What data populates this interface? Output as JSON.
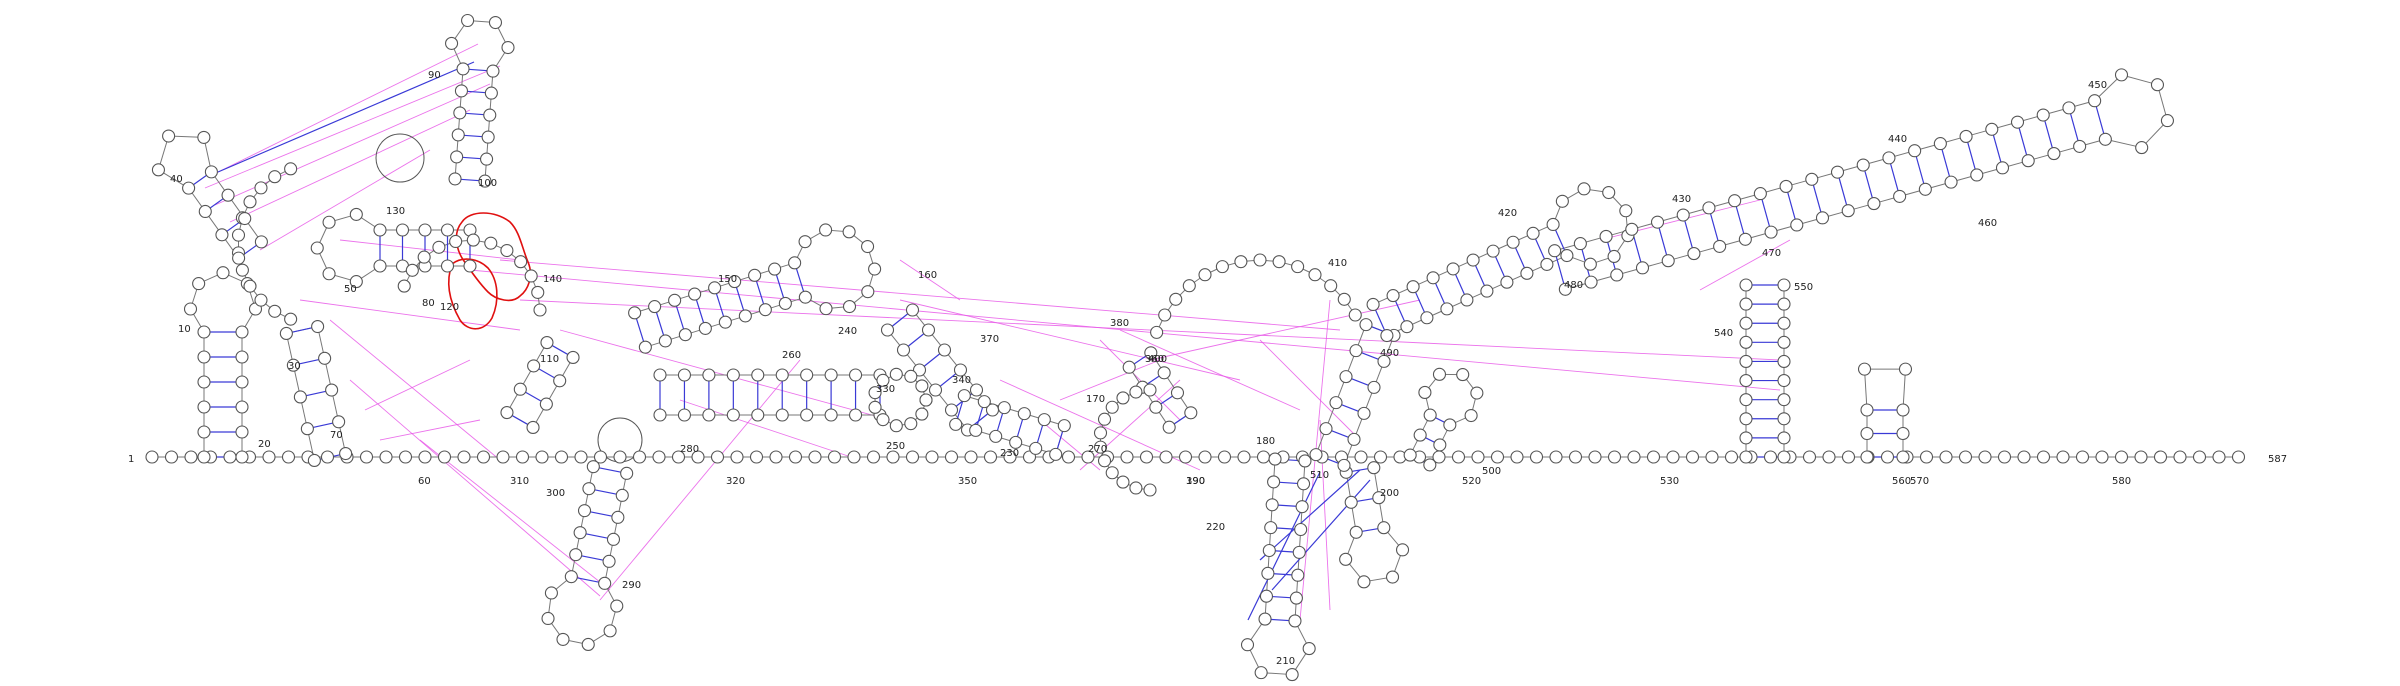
{
  "structure": {
    "sequence_start": "1",
    "sequence_end": "587",
    "position_labels": [
      "10",
      "20",
      "30",
      "40",
      "50",
      "60",
      "70",
      "80",
      "90",
      "100",
      "110",
      "120",
      "130",
      "140",
      "150",
      "160",
      "170",
      "180",
      "190",
      "200",
      "210",
      "220",
      "230",
      "240",
      "250",
      "260",
      "270",
      "280",
      "290",
      "300",
      "310",
      "320",
      "330",
      "340",
      "350",
      "360",
      "370",
      "380",
      "390",
      "400",
      "410",
      "420",
      "430",
      "440",
      "450",
      "460",
      "470",
      "480",
      "490",
      "500",
      "510",
      "520",
      "530",
      "540",
      "550",
      "560",
      "570",
      "580"
    ]
  },
  "colors": {
    "nucleotide_outline": "#555555",
    "backbone": "#777777",
    "canonical_pair": "#3a3ad6",
    "tertiary_interaction": "#e85be8",
    "highlight": "#e01010"
  }
}
